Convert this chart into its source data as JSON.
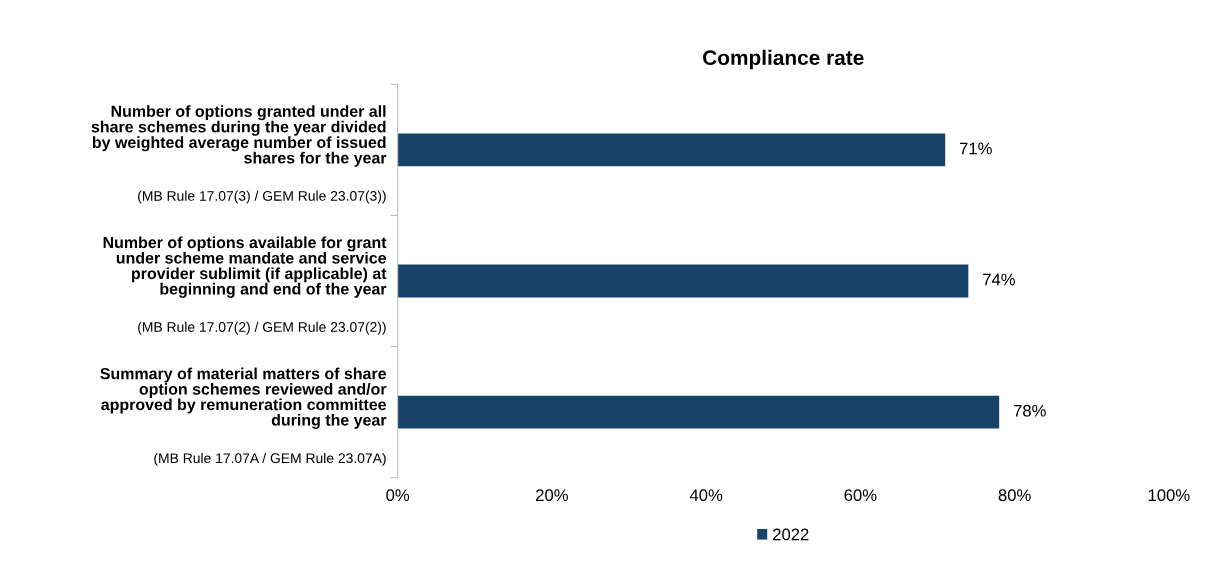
{
  "chart_data": {
    "type": "bar",
    "orientation": "horizontal",
    "title": "Compliance rate",
    "categories": [
      "Number of options granted under all\nshare schemes during the year divided\nby weighted average number of issued\nshares for the year\n(MB Rule 17.07(3) / GEM Rule 23.07(3))",
      "Number of options available for grant\nunder scheme mandate and service\nprovider sublimit (if applicable) at\nbeginning and end of the year\n(MB Rule 17.07(2) / GEM Rule 23.07(2))",
      "Summary of material matters of share\noption schemes reviewed and/or\napproved by remuneration committee\nduring the year\n(MB Rule 17.07A / GEM Rule 23.07A)"
    ],
    "series": [
      {
        "name": "2022",
        "color": "#17436b",
        "values": [
          71,
          74,
          78
        ],
        "value_labels": [
          "71%",
          "74%",
          "78%"
        ]
      }
    ],
    "xlim": [
      0,
      100
    ],
    "xticks": [
      {
        "value": 0,
        "label": "0%"
      },
      {
        "value": 20,
        "label": "20%"
      },
      {
        "value": 40,
        "label": "40%"
      },
      {
        "value": 60,
        "label": "60%"
      },
      {
        "value": 80,
        "label": "80%"
      },
      {
        "value": 100,
        "label": "100%"
      }
    ],
    "grid": false,
    "legend": "bottom"
  }
}
